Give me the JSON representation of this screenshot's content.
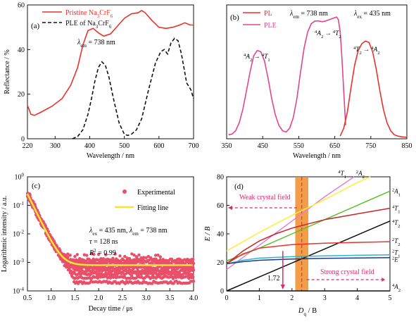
{
  "colors": {
    "red": "#e8322d",
    "pink": "#e0468c",
    "black": "#111111",
    "ple_dash": "#111111",
    "exp_marker": "#e8506a",
    "fit_line": "#f5e634",
    "arrow_magenta": "#e0286e",
    "band_fill": "#f08c28",
    "green": "#5cbf2a",
    "yellow": "#ffec3d",
    "light_pink": "#e77fd0",
    "darkred": "#c2282e",
    "cyan": "#2fb3d4",
    "navy": "#1e3a8a"
  },
  "chart_data": [
    {
      "panel": "a",
      "type": "line",
      "panel_label": "(a)",
      "xlabel": "Wavelength / nm",
      "ylabel": "Reflectance / %",
      "xlim": [
        220,
        700
      ],
      "ylim": [
        0,
        60
      ],
      "xticks": [
        220,
        300,
        400,
        500,
        600,
        700
      ],
      "yticks": [
        0,
        20,
        40,
        60
      ],
      "annotation": {
        "pre": "λ",
        "sub": "em",
        "post": " = 738 nm"
      },
      "legend": [
        {
          "pre": "Pristine Na",
          "sub": "3",
          "mid": "CrF",
          "sub2": "6",
          "style": "solid"
        },
        {
          "pre": "PLE of Na",
          "sub": "3",
          "mid": "CrF",
          "sub2": "6",
          "style": "dashed"
        }
      ],
      "series": [
        {
          "name": "Pristine Na3CrF6",
          "style": "solid",
          "x": [
            220,
            230,
            240,
            260,
            290,
            320,
            345,
            365,
            380,
            395,
            410,
            425,
            440,
            460,
            480,
            500,
            520,
            540,
            550,
            560,
            580,
            600,
            620,
            640,
            660,
            675,
            690,
            700
          ],
          "y": [
            15,
            11,
            10.5,
            12,
            14.5,
            18,
            24,
            32,
            42,
            48.5,
            49.5,
            47.5,
            46,
            47,
            50.5,
            54,
            56,
            56.5,
            57.5,
            56.5,
            53,
            50,
            49.5,
            50,
            51,
            52,
            51,
            51
          ]
        },
        {
          "name": "PLE of Na3CrF6",
          "style": "dashed",
          "x": [
            350,
            365,
            380,
            395,
            405,
            415,
            425,
            435,
            445,
            455,
            470,
            485,
            500,
            510,
            520,
            535,
            550,
            570,
            590,
            605,
            615,
            625,
            635,
            645,
            655,
            665,
            680,
            692,
            700
          ],
          "y": [
            0,
            1,
            4,
            11,
            18,
            26,
            32,
            34.5,
            33,
            28,
            17,
            7,
            2,
            1.5,
            2,
            4,
            9,
            22,
            34,
            39,
            40,
            38,
            43,
            45,
            44,
            38,
            25,
            22,
            18
          ]
        }
      ]
    },
    {
      "panel": "b",
      "type": "line",
      "panel_label": "(b)",
      "xlabel": "Wavelength / nm",
      "xlim": [
        350,
        850
      ],
      "xticks": [
        350,
        450,
        550,
        650,
        750,
        850
      ],
      "legend": [
        {
          "label": "PL"
        },
        {
          "label": "PLE"
        }
      ],
      "header_lem": {
        "pre": "λ",
        "sub": "em",
        "post": " = 738 nm"
      },
      "header_lex": {
        "pre": "λ",
        "sub": "ex",
        "post": " = 435 nm"
      },
      "peak_labels": [
        {
          "sup1": "4",
          "a": "A",
          "sub1": "2",
          "arrow": "→",
          "sup2": "4",
          "b": "T",
          "sub2": "1"
        },
        {
          "sup1": "4",
          "a": "A",
          "sub1": "2",
          "arrow": "→",
          "sup2": "4",
          "b": "T",
          "sub2": "2"
        },
        {
          "sup1": "4",
          "a": "T",
          "sub1": "2",
          "arrow": "→",
          "sup2": "4",
          "b": "A",
          "sub2": "2"
        }
      ],
      "series": [
        {
          "name": "PLE",
          "style": "solid",
          "x": [
            355,
            365,
            375,
            385,
            395,
            405,
            415,
            425,
            435,
            445,
            455,
            465,
            475,
            485,
            495,
            505,
            515,
            525,
            535,
            545,
            555,
            565,
            575,
            585,
            595,
            605,
            615,
            625,
            635,
            645,
            655,
            660,
            665,
            670,
            675,
            680
          ],
          "y": [
            3,
            3.5,
            6,
            12,
            22,
            36,
            50,
            62,
            66,
            65,
            58,
            45,
            30,
            18,
            10,
            6,
            5,
            8,
            16,
            30,
            50,
            68,
            80,
            86,
            88,
            88,
            87.5,
            88,
            89,
            90,
            91,
            89,
            80,
            60,
            35,
            10
          ]
        },
        {
          "name": "PL",
          "style": "solid",
          "x": [
            665,
            675,
            685,
            695,
            705,
            715,
            725,
            735,
            745,
            755,
            765,
            775,
            785,
            795,
            805,
            815,
            825,
            835,
            845,
            850
          ],
          "y": [
            2,
            8,
            20,
            38,
            55,
            66,
            71,
            73,
            72,
            65,
            52,
            36,
            22,
            12,
            6,
            3,
            2,
            1.5,
            1.2,
            1
          ]
        }
      ]
    },
    {
      "panel": "c",
      "type": "scatter",
      "panel_label": "(c)",
      "xlabel": "Decay time / μs",
      "ylabel": "Logarithmic intensity / a.u.",
      "xlim": [
        0.5,
        4.0
      ],
      "ylim_log10": [
        -4,
        0
      ],
      "xticks": [
        0.5,
        1.0,
        1.5,
        2.0,
        2.5,
        3.0,
        3.5,
        4.0
      ],
      "yticks": [
        {
          "mant": "10",
          "exp": "-4"
        },
        {
          "mant": "10",
          "exp": "-3"
        },
        {
          "mant": "10",
          "exp": "-2"
        },
        {
          "mant": "10",
          "exp": "-1"
        },
        {
          "mant": "10",
          "exp": "0"
        }
      ],
      "legend": [
        {
          "label": "Experimental"
        },
        {
          "label": "Fitting line"
        }
      ],
      "annotations": {
        "line1": {
          "p1": "λ",
          "s1": "ex",
          "m1": " = 435 nm, ",
          "p2": "λ",
          "s2": "em",
          "m2": " = 738 nm"
        },
        "line2": {
          "p1": "τ",
          "post": " = 128 ns"
        },
        "line3": {
          "p1": "R",
          "sup": "2",
          "post": " = 0.99"
        }
      },
      "fit": {
        "tau_ns": 128,
        "baseline": 0.0008,
        "t0": 0.5,
        "y0": 0.25
      },
      "floor_levels": [
        0.0012,
        0.001,
        0.0008,
        0.00065,
        0.0005,
        0.0004,
        0.0003,
        0.0002
      ]
    },
    {
      "panel": "d",
      "type": "line",
      "panel_label": "(d)",
      "xlabel_pre": "D",
      "xlabel_sub": "q",
      "xlabel_post": " / B",
      "ylabel": "E / B",
      "xlim": [
        0,
        5
      ],
      "ylim": [
        0,
        80
      ],
      "xticks": [
        0,
        1,
        2,
        3,
        4,
        5
      ],
      "yticks": [
        0,
        20,
        40,
        60,
        80
      ],
      "marker_value": "1.72",
      "marker_x": 1.72,
      "marker_y": 28,
      "band_x": [
        2.1,
        2.5
      ],
      "dashed_x": 2.3,
      "weak_label": "Weak crystal field",
      "strong_label": "Strong crystal field",
      "series": [
        {
          "name": "4T1",
          "sup": "4",
          "base": "T",
          "sub": "1",
          "style": "solid",
          "color": "light_pink",
          "x": [
            0,
            1,
            2,
            3,
            3.9
          ],
          "y": [
            15,
            32,
            49,
            66,
            80
          ]
        },
        {
          "name": "2A2",
          "sup": "2",
          "base": "A",
          "sub": "2",
          "style": "solid",
          "color": "yellow",
          "x": [
            0,
            1,
            2,
            3,
            4,
            4.4
          ],
          "y": [
            28,
            41,
            53,
            64,
            76,
            80
          ]
        },
        {
          "name": "2A1",
          "sup": "2",
          "base": "A",
          "sub": "1",
          "style": "solid",
          "color": "green",
          "x": [
            0,
            1,
            2,
            3,
            4,
            5
          ],
          "y": [
            21,
            30,
            40,
            50,
            60,
            70
          ]
        },
        {
          "name": "4T1",
          "sup": "4",
          "base": "T",
          "sub": "1",
          "style": "solid",
          "color": "darkred",
          "x": [
            0,
            0.5,
            1,
            1.5,
            2,
            2.5,
            3,
            3.5,
            4,
            4.5,
            5
          ],
          "y": [
            19,
            28,
            35,
            40,
            44,
            47,
            50,
            52,
            54,
            56,
            58
          ]
        },
        {
          "name": "4T2",
          "sup": "4",
          "base": "T",
          "sub": "2",
          "style": "solid",
          "color": "black",
          "x": [
            0,
            5
          ],
          "y": [
            0,
            49
          ]
        },
        {
          "name": "2T2",
          "sup": "2",
          "base": "T",
          "sub": "2",
          "style": "solid",
          "color": "red",
          "x": [
            0,
            0.5,
            1,
            2,
            3,
            4,
            5
          ],
          "y": [
            19,
            26,
            30,
            32.5,
            33.5,
            34,
            34.5
          ]
        },
        {
          "name": "2T1",
          "sup": "2",
          "base": "T",
          "sub": "1",
          "style": "solid",
          "color": "cyan",
          "x": [
            0,
            0.5,
            1,
            2,
            3,
            4,
            5
          ],
          "y": [
            19,
            21.5,
            23,
            24,
            24.6,
            25,
            25.3
          ]
        },
        {
          "name": "2E",
          "sup": "2",
          "base": "E",
          "sub": "",
          "style": "solid",
          "color": "navy",
          "x": [
            0,
            0.5,
            1,
            2,
            3,
            4,
            5
          ],
          "y": [
            19,
            20.5,
            21.5,
            22.3,
            22.8,
            23.1,
            23.3
          ]
        },
        {
          "name": "4A2",
          "sup": "4",
          "base": "A",
          "sub": "2",
          "style": "solid",
          "color": "black",
          "x": [
            0,
            5
          ],
          "y": [
            0,
            0
          ]
        }
      ],
      "right_labels": [
        {
          "sup": "2",
          "base": "A",
          "sub": "1",
          "y": 70
        },
        {
          "sup": "4",
          "base": "T",
          "sub": "1",
          "y": 58
        },
        {
          "sup": "4",
          "base": "T",
          "sub": "2",
          "y": 48
        },
        {
          "sup": "2",
          "base": "T",
          "sub": "2",
          "y": 35
        },
        {
          "sup": "2",
          "base": "T",
          "sub": "1",
          "y": 27
        },
        {
          "sup": "2",
          "base": "E",
          "sub": "",
          "y": 22
        },
        {
          "sup": "4",
          "base": "A",
          "sub": "2",
          "y": 3
        }
      ],
      "top_labels": [
        {
          "sup": "4",
          "base": "T",
          "sub": "1",
          "x": 3.5
        },
        {
          "sup": "2",
          "base": "A",
          "sub": "2",
          "x": 4.05
        }
      ]
    }
  ]
}
